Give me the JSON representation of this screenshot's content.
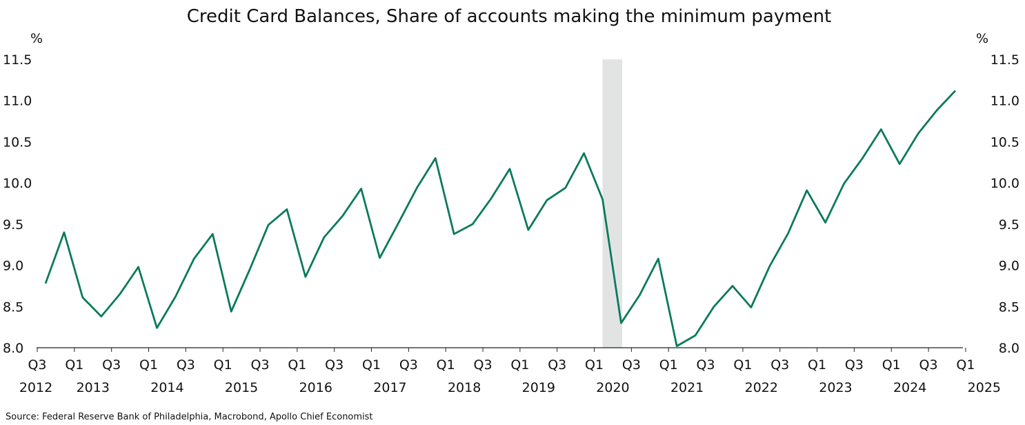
{
  "chart_data": {
    "type": "line",
    "title": "Credit Card Balances, Share of accounts making the minimum payment",
    "y_unit_left": "%",
    "y_unit_right": "%",
    "ylim": [
      8.0,
      11.5
    ],
    "yticks": [
      "8.0",
      "8.5",
      "9.0",
      "9.5",
      "10.0",
      "10.5",
      "11.0",
      "11.5"
    ],
    "x_quarter_ticks": [
      "Q3",
      "Q1",
      "Q3",
      "Q1",
      "Q3",
      "Q1",
      "Q3",
      "Q1",
      "Q3",
      "Q1",
      "Q3",
      "Q1",
      "Q3",
      "Q1",
      "Q3",
      "Q1",
      "Q3",
      "Q1",
      "Q3",
      "Q1",
      "Q3",
      "Q1",
      "Q3",
      "Q1",
      "Q3",
      "Q1"
    ],
    "x_year_labels": [
      "2012",
      "2013",
      "2014",
      "2015",
      "2016",
      "2017",
      "2018",
      "2019",
      "2020",
      "2021",
      "2022",
      "2023",
      "2024",
      "2025"
    ],
    "recession_shading": {
      "start": "2020 Q1",
      "end": "2020 Q2"
    },
    "legend": "none",
    "grid": false,
    "series": [
      {
        "color": "#0a7a5c",
        "x": [
          "2012 Q3",
          "2012 Q4",
          "2013 Q1",
          "2013 Q2",
          "2013 Q3",
          "2013 Q4",
          "2014 Q1",
          "2014 Q2",
          "2014 Q3",
          "2014 Q4",
          "2015 Q1",
          "2015 Q2",
          "2015 Q3",
          "2015 Q4",
          "2016 Q1",
          "2016 Q2",
          "2016 Q3",
          "2016 Q4",
          "2017 Q1",
          "2017 Q2",
          "2017 Q3",
          "2017 Q4",
          "2018 Q1",
          "2018 Q2",
          "2018 Q3",
          "2018 Q4",
          "2019 Q1",
          "2019 Q2",
          "2019 Q3",
          "2019 Q4",
          "2020 Q1",
          "2020 Q2",
          "2020 Q3",
          "2020 Q4",
          "2021 Q1",
          "2021 Q2",
          "2021 Q3",
          "2021 Q4",
          "2022 Q1",
          "2022 Q2",
          "2022 Q3",
          "2022 Q4",
          "2023 Q1",
          "2023 Q2",
          "2023 Q3",
          "2023 Q4",
          "2024 Q1",
          "2024 Q2",
          "2024 Q3",
          "2024 Q4"
        ],
        "values": [
          8.78,
          9.4,
          8.61,
          8.38,
          8.65,
          8.98,
          8.24,
          8.62,
          9.08,
          9.38,
          8.44,
          8.95,
          9.49,
          9.68,
          8.86,
          9.34,
          9.6,
          9.93,
          9.09,
          9.51,
          9.94,
          10.3,
          9.38,
          9.5,
          9.81,
          10.17,
          9.43,
          9.79,
          9.94,
          10.36,
          9.8,
          8.3,
          8.64,
          9.08,
          8.02,
          8.15,
          8.5,
          8.75,
          8.49,
          8.99,
          9.39,
          9.91,
          9.52,
          9.99,
          10.3,
          10.65,
          10.23,
          10.6,
          10.88,
          11.12
        ]
      }
    ]
  },
  "source": "Source: Federal Reserve Bank of Philadelphia, Macrobond, Apollo Chief Economist"
}
